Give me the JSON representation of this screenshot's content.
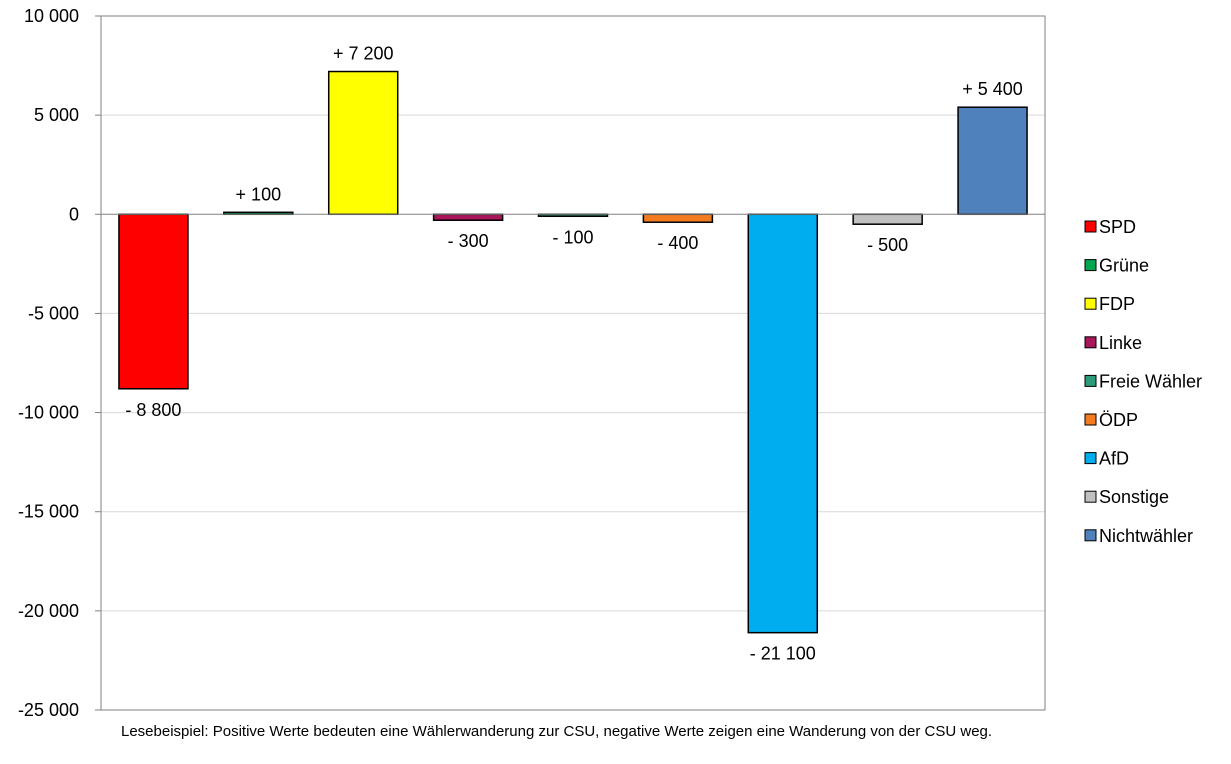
{
  "chart_data": {
    "type": "bar",
    "categories": [
      "SPD",
      "Grüne",
      "FDP",
      "Linke",
      "Freie Wähler",
      "ÖDP",
      "AfD",
      "Sonstige",
      "Nichtwähler"
    ],
    "values": [
      -8800,
      100,
      7200,
      -300,
      -100,
      -400,
      -21100,
      -500,
      5400
    ],
    "data_labels": [
      "- 8 800",
      "+ 100",
      "+ 7 200",
      "- 300",
      "- 100",
      "- 400",
      "- 21 100",
      "- 500",
      "+ 5 400"
    ],
    "colors": [
      "#ff0000",
      "#00a650",
      "#ffff00",
      "#a8175b",
      "#2e9a7a",
      "#f47c20",
      "#00aeef",
      "#c0c0c0",
      "#4f81bd"
    ],
    "ylim": [
      -25000,
      10000
    ],
    "yticks": [
      10000,
      5000,
      0,
      -5000,
      -10000,
      -15000,
      -20000,
      -25000
    ],
    "ytick_labels": [
      "10 000",
      "5 000",
      "0",
      "-5 000",
      "-10 000",
      "-15 000",
      "-20 000",
      "-25 000"
    ],
    "grid": true,
    "legend_position": "right",
    "title": "",
    "xlabel": "",
    "ylabel": ""
  },
  "footnote": "Lesebeispiel: Positive Werte bedeuten eine Wählerwanderung zur CSU, negative Werte zeigen eine Wanderung von der CSU weg."
}
